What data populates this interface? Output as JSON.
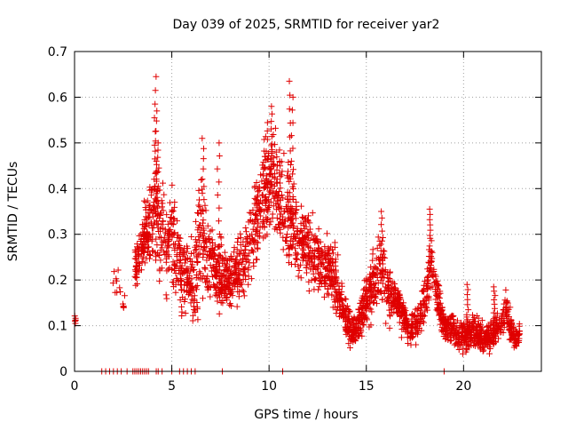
{
  "chart_data": {
    "type": "scatter",
    "title": "Day 039 of 2025, SRMTID for receiver yar2",
    "xlabel": "GPS time / hours",
    "ylabel": "SRMTID / TECUs",
    "xlim": [
      0,
      24
    ],
    "ylim": [
      0,
      0.7
    ],
    "x_ticks": [
      0,
      5,
      10,
      15,
      20
    ],
    "x_tick_labels": [
      "0",
      "5",
      "10",
      "15",
      "20"
    ],
    "y_ticks": [
      0,
      0.1,
      0.2,
      0.3,
      0.4,
      0.5,
      0.6,
      0.7
    ],
    "y_tick_labels": [
      "0",
      "0.1",
      "0.2",
      "0.3",
      "0.4",
      "0.5",
      "0.6",
      "0.7"
    ],
    "grid": true,
    "marker": "+",
    "color": "#e00000",
    "envelope": {
      "x": [
        0,
        0.1,
        1.9,
        2.1,
        2.5,
        3.2,
        3.6,
        4.0,
        4.2,
        4.5,
        4.8,
        5.0,
        5.4,
        5.8,
        6.2,
        6.5,
        6.8,
        7.2,
        7.6,
        8.0,
        8.4,
        8.8,
        9.2,
        9.5,
        9.8,
        10.2,
        10.6,
        11.0,
        11.4,
        11.8,
        12.2,
        12.6,
        13.0,
        13.4,
        13.8,
        14.1,
        14.4,
        14.7,
        15.0,
        15.4,
        15.7,
        16.0,
        16.4,
        16.8,
        17.2,
        17.6,
        18.0,
        18.3,
        18.6,
        19.0,
        19.4,
        19.8,
        20.2,
        20.6,
        21.0,
        21.4,
        21.8,
        22.2,
        22.6,
        22.9
      ],
      "y": [
        0.11,
        0.11,
        0.2,
        0.2,
        0.15,
        0.24,
        0.3,
        0.33,
        0.35,
        0.3,
        0.26,
        0.3,
        0.24,
        0.2,
        0.2,
        0.3,
        0.26,
        0.22,
        0.21,
        0.2,
        0.22,
        0.25,
        0.3,
        0.36,
        0.4,
        0.42,
        0.37,
        0.34,
        0.3,
        0.28,
        0.26,
        0.23,
        0.22,
        0.2,
        0.13,
        0.1,
        0.09,
        0.12,
        0.15,
        0.2,
        0.22,
        0.18,
        0.16,
        0.13,
        0.09,
        0.1,
        0.15,
        0.24,
        0.18,
        0.1,
        0.1,
        0.08,
        0.08,
        0.09,
        0.07,
        0.08,
        0.1,
        0.13,
        0.07,
        0.08
      ],
      "spread": [
        0.01,
        0.01,
        0.05,
        0.05,
        0.03,
        0.05,
        0.06,
        0.1,
        0.13,
        0.1,
        0.09,
        0.09,
        0.08,
        0.07,
        0.1,
        0.12,
        0.1,
        0.07,
        0.07,
        0.06,
        0.06,
        0.06,
        0.08,
        0.08,
        0.1,
        0.1,
        0.1,
        0.1,
        0.08,
        0.07,
        0.07,
        0.06,
        0.06,
        0.06,
        0.05,
        0.04,
        0.03,
        0.04,
        0.05,
        0.06,
        0.07,
        0.06,
        0.05,
        0.04,
        0.03,
        0.03,
        0.05,
        0.06,
        0.05,
        0.03,
        0.03,
        0.03,
        0.03,
        0.03,
        0.03,
        0.03,
        0.04,
        0.04,
        0.02,
        0.02
      ]
    },
    "peaks": [
      {
        "x": 4.15,
        "y": 0.645
      },
      {
        "x": 4.2,
        "y": 0.57
      },
      {
        "x": 4.25,
        "y": 0.5
      },
      {
        "x": 6.6,
        "y": 0.51
      },
      {
        "x": 7.4,
        "y": 0.5
      },
      {
        "x": 10.1,
        "y": 0.58
      },
      {
        "x": 11.1,
        "y": 0.635
      },
      {
        "x": 11.2,
        "y": 0.6
      },
      {
        "x": 15.8,
        "y": 0.35
      },
      {
        "x": 18.3,
        "y": 0.355
      },
      {
        "x": 20.2,
        "y": 0.19
      },
      {
        "x": 21.6,
        "y": 0.185
      }
    ],
    "zero_points_x": [
      1.4,
      1.6,
      1.8,
      2.0,
      2.2,
      2.4,
      2.7,
      3.0,
      3.1,
      3.2,
      3.3,
      3.4,
      3.5,
      3.6,
      3.7,
      3.8,
      4.2,
      4.3,
      4.5,
      5.0,
      5.4,
      5.6,
      5.8,
      6.0,
      6.2,
      7.6,
      10.7,
      19.0
    ]
  }
}
